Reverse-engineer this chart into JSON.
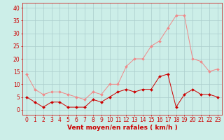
{
  "hours": [
    0,
    1,
    2,
    3,
    4,
    5,
    6,
    7,
    8,
    9,
    10,
    11,
    12,
    13,
    14,
    15,
    16,
    17,
    18,
    19,
    20,
    21,
    22,
    23
  ],
  "rafales": [
    14,
    8,
    6,
    7,
    7,
    6,
    5,
    4,
    7,
    6,
    10,
    10,
    17,
    20,
    20,
    25,
    27,
    32,
    37,
    37,
    20,
    19,
    15,
    16
  ],
  "vent_moyen": [
    5,
    3,
    1,
    3,
    3,
    1,
    1,
    1,
    4,
    3,
    5,
    7,
    8,
    7,
    8,
    8,
    13,
    14,
    1,
    6,
    8,
    6,
    6,
    5
  ],
  "bg_color": "#cceee8",
  "grid_color": "#aacccc",
  "line_color_rafales": "#f08888",
  "line_color_vent": "#cc0000",
  "xlabel": "Vent moyen/en rafales ( km/h )",
  "xlabel_color": "#cc0000",
  "tick_color": "#cc0000",
  "ylim": [
    -2,
    42
  ],
  "yticks": [
    0,
    5,
    10,
    15,
    20,
    25,
    30,
    35,
    40
  ],
  "tick_fontsize": 5.5,
  "xlabel_fontsize": 6.5
}
